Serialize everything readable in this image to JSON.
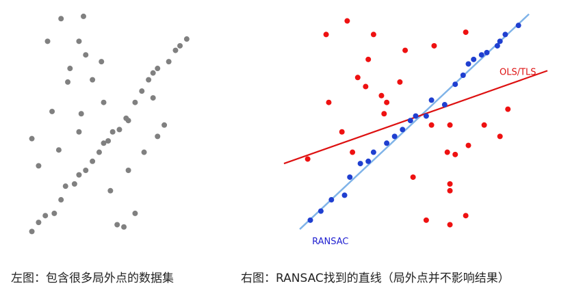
{
  "captions": {
    "left": "左图：包含很多局外点的数据集",
    "right": "右图：RANSAC找到的直线（局外点并不影响结果）"
  },
  "chart_data": [
    {
      "type": "scatter",
      "title": "",
      "xlabel": "",
      "ylabel": "",
      "xlim": [
        0,
        10
      ],
      "ylim": [
        0,
        10
      ],
      "grid": false,
      "axes_visible": false,
      "series": [
        {
          "color": "#808080",
          "points": [
            [
              0.2,
              0.2
            ],
            [
              0.5,
              0.6
            ],
            [
              0.8,
              0.9
            ],
            [
              1.2,
              1.0
            ],
            [
              1.5,
              1.6
            ],
            [
              1.7,
              2.2
            ],
            [
              2.1,
              2.3
            ],
            [
              2.3,
              2.7
            ],
            [
              2.6,
              2.9
            ],
            [
              2.9,
              3.3
            ],
            [
              3.2,
              3.7
            ],
            [
              3.4,
              4.1
            ],
            [
              3.6,
              4.2
            ],
            [
              3.8,
              4.6
            ],
            [
              4.1,
              4.7
            ],
            [
              4.4,
              5.2
            ],
            [
              4.8,
              5.9
            ],
            [
              5.1,
              6.4
            ],
            [
              5.4,
              6.9
            ],
            [
              5.6,
              7.2
            ],
            [
              5.8,
              7.4
            ],
            [
              6.3,
              7.7
            ],
            [
              6.6,
              8.2
            ],
            [
              6.8,
              8.4
            ],
            [
              7.1,
              8.7
            ],
            [
              0.2,
              4.3
            ],
            [
              0.5,
              3.1
            ],
            [
              1.1,
              5.5
            ],
            [
              1.4,
              3.8
            ],
            [
              1.8,
              6.8
            ],
            [
              1.9,
              7.4
            ],
            [
              2.3,
              4.6
            ],
            [
              2.4,
              5.4
            ],
            [
              2.6,
              8.0
            ],
            [
              2.9,
              6.9
            ],
            [
              3.3,
              7.7
            ],
            [
              3.4,
              5.9
            ],
            [
              3.7,
              2.0
            ],
            [
              4.0,
              0.5
            ],
            [
              4.3,
              0.4
            ],
            [
              4.5,
              5.1
            ],
            [
              4.5,
              2.9
            ],
            [
              4.8,
              1.0
            ],
            [
              5.2,
              3.7
            ],
            [
              5.6,
              6.1
            ],
            [
              5.8,
              4.4
            ],
            [
              6.1,
              4.9
            ],
            [
              0.9,
              8.6
            ],
            [
              1.5,
              9.6
            ],
            [
              2.3,
              8.6
            ],
            [
              2.5,
              9.7
            ]
          ]
        }
      ]
    },
    {
      "type": "scatter",
      "title": "",
      "xlabel": "",
      "ylabel": "",
      "xlim": [
        0,
        10
      ],
      "ylim": [
        0,
        10
      ],
      "grid": false,
      "axes_visible": false,
      "series": [
        {
          "color": "#1f3fd0",
          "points": [
            [
              1.0,
              0.7
            ],
            [
              1.4,
              1.1
            ],
            [
              1.8,
              1.6
            ],
            [
              2.3,
              1.8
            ],
            [
              2.5,
              2.6
            ],
            [
              2.9,
              3.2
            ],
            [
              3.2,
              3.3
            ],
            [
              3.4,
              3.7
            ],
            [
              3.9,
              4.1
            ],
            [
              4.2,
              4.4
            ],
            [
              4.5,
              4.7
            ],
            [
              4.8,
              5.1
            ],
            [
              5.0,
              5.3
            ],
            [
              5.4,
              5.3
            ],
            [
              5.6,
              6.0
            ],
            [
              6.1,
              5.8
            ],
            [
              6.5,
              6.7
            ],
            [
              6.8,
              7.1
            ],
            [
              7.0,
              7.6
            ],
            [
              7.2,
              7.8
            ],
            [
              7.5,
              8.0
            ],
            [
              7.7,
              8.1
            ],
            [
              8.1,
              8.4
            ],
            [
              8.2,
              8.6
            ],
            [
              8.4,
              8.9
            ],
            [
              8.9,
              9.3
            ]
          ]
        },
        {
          "color": "#ee1111",
          "points": [
            [
              1.6,
              8.9
            ],
            [
              2.4,
              9.5
            ],
            [
              3.4,
              8.9
            ],
            [
              3.2,
              7.8
            ],
            [
              2.8,
              7.0
            ],
            [
              3.1,
              6.6
            ],
            [
              1.7,
              5.9
            ],
            [
              2.2,
              4.6
            ],
            [
              3.7,
              6.2
            ],
            [
              4.4,
              6.8
            ],
            [
              3.9,
              5.9
            ],
            [
              3.8,
              5.4
            ],
            [
              2.6,
              3.7
            ],
            [
              0.9,
              3.4
            ],
            [
              5.6,
              4.9
            ],
            [
              6.3,
              4.9
            ],
            [
              7.6,
              4.9
            ],
            [
              8.5,
              5.6
            ],
            [
              8.2,
              4.4
            ],
            [
              7.0,
              4.0
            ],
            [
              6.2,
              3.7
            ],
            [
              6.3,
              2.3
            ],
            [
              4.6,
              8.2
            ],
            [
              5.7,
              8.4
            ],
            [
              6.9,
              9.0
            ],
            [
              5.4,
              0.7
            ],
            [
              6.3,
              0.5
            ],
            [
              6.9,
              0.9
            ],
            [
              6.3,
              2.0
            ],
            [
              4.9,
              2.6
            ],
            [
              6.5,
              3.6
            ]
          ]
        }
      ],
      "lines": [
        {
          "name": "RANSAC",
          "color": "#7fb3e8",
          "from": [
            0.6,
            0.3
          ],
          "to": [
            9.3,
            9.8
          ]
        },
        {
          "name": "OLS/TLS",
          "color": "#dd1111",
          "from": [
            0.0,
            3.2
          ],
          "to": [
            10.0,
            7.3
          ]
        }
      ]
    }
  ]
}
